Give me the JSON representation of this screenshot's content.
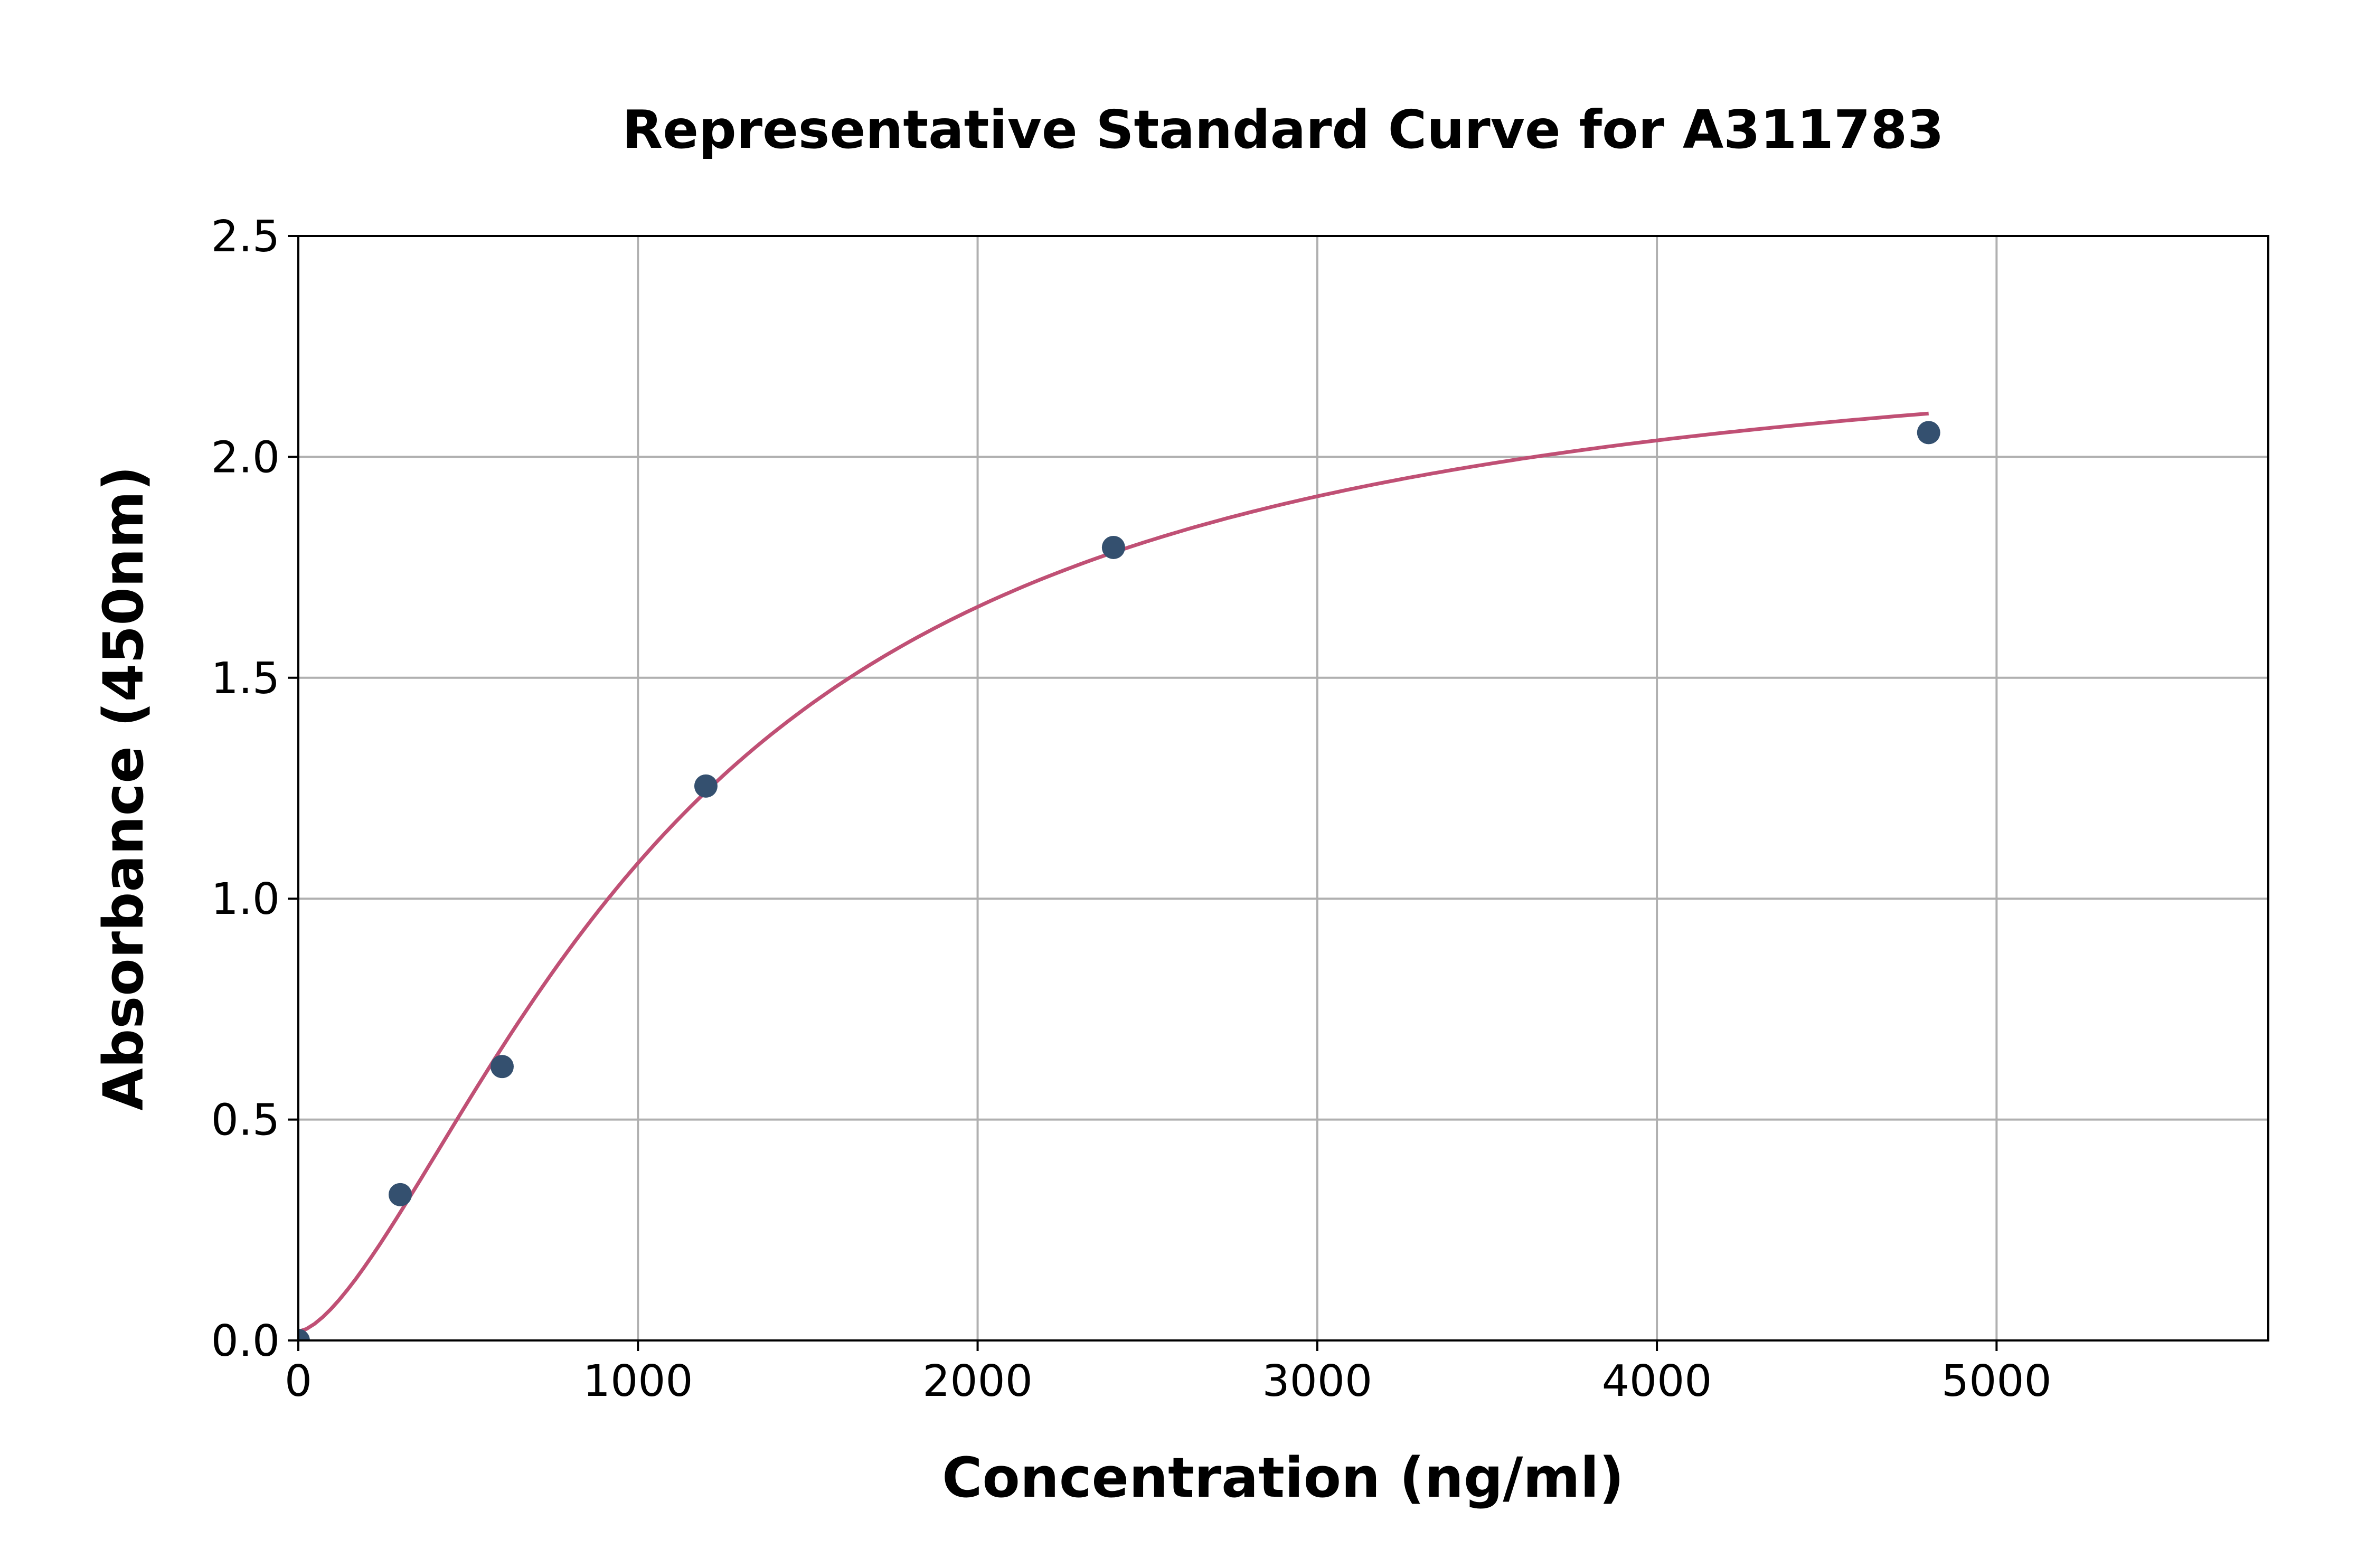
{
  "chart_data": {
    "type": "scatter",
    "title": "Representative Standard Curve for A311783",
    "xlabel": "Concentration (ng/ml)",
    "ylabel": "Absorbance (450nm)",
    "xlim": [
      0,
      5800
    ],
    "ylim": [
      0,
      2.5
    ],
    "xticks": [
      0,
      1000,
      2000,
      3000,
      4000,
      5000
    ],
    "yticks": [
      0.0,
      0.5,
      1.0,
      1.5,
      2.0,
      2.5
    ],
    "xtick_labels": [
      "0",
      "1000",
      "2000",
      "3000",
      "4000",
      "5000"
    ],
    "ytick_labels": [
      "0.0",
      "0.5",
      "1.0",
      "1.5",
      "2.0",
      "2.5"
    ],
    "grid": true,
    "points": [
      {
        "x": 0,
        "y": 0.0
      },
      {
        "x": 300,
        "y": 0.33
      },
      {
        "x": 600,
        "y": 0.62
      },
      {
        "x": 1200,
        "y": 1.255
      },
      {
        "x": 2400,
        "y": 1.795
      },
      {
        "x": 4800,
        "y": 2.055
      }
    ],
    "fit_curve": "4-parameter logistic",
    "colors": {
      "points": "#34506f",
      "curve": "#c05075",
      "grid": "#b0b0b0"
    }
  }
}
